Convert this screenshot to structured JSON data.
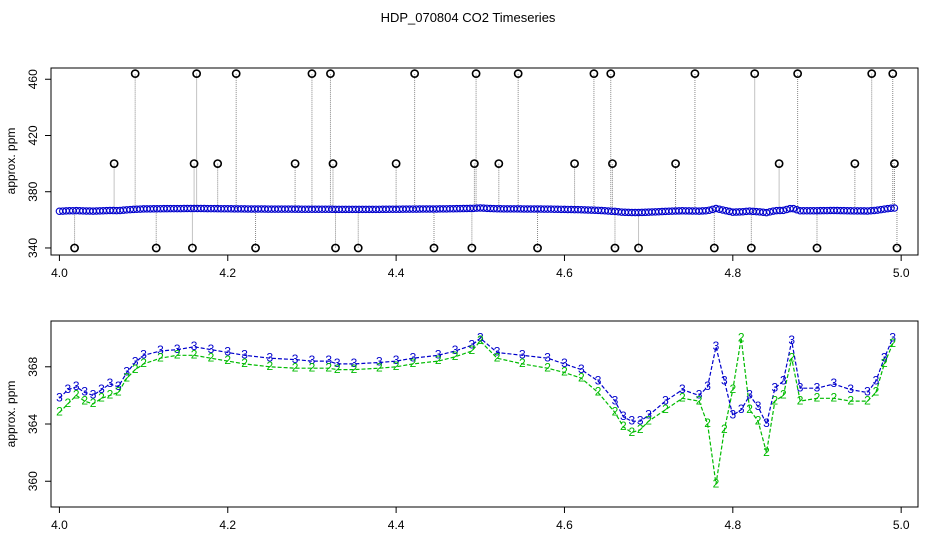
{
  "chart_data": [
    {
      "type": "scatter",
      "title": "HDP_070804  CO2 Timeseries",
      "ylabel": "approx. ppm",
      "xlim": [
        3.99,
        5.02
      ],
      "ylim": [
        335,
        468
      ],
      "xticks": [
        "4.0",
        "4.2",
        "4.4",
        "4.6",
        "4.8",
        "5.0"
      ],
      "yticks": [
        "340",
        "380",
        "420",
        "460"
      ],
      "colors": {
        "raw": "#000000",
        "s2": "#00bb00",
        "s3": "#0000cc",
        "line": "#888888"
      },
      "outliers": [
        {
          "x": 4.018,
          "y": 340
        },
        {
          "x": 4.065,
          "y": 400
        },
        {
          "x": 4.09,
          "y": 464
        },
        {
          "x": 4.115,
          "y": 340
        },
        {
          "x": 4.158,
          "y": 340
        },
        {
          "x": 4.16,
          "y": 400
        },
        {
          "x": 4.163,
          "y": 464
        },
        {
          "x": 4.188,
          "y": 400
        },
        {
          "x": 4.21,
          "y": 464
        },
        {
          "x": 4.233,
          "y": 340
        },
        {
          "x": 4.28,
          "y": 400
        },
        {
          "x": 4.3,
          "y": 464
        },
        {
          "x": 4.322,
          "y": 464
        },
        {
          "x": 4.325,
          "y": 400
        },
        {
          "x": 4.328,
          "y": 340
        },
        {
          "x": 4.355,
          "y": 340
        },
        {
          "x": 4.4,
          "y": 400
        },
        {
          "x": 4.422,
          "y": 464
        },
        {
          "x": 4.445,
          "y": 340
        },
        {
          "x": 4.49,
          "y": 340
        },
        {
          "x": 4.493,
          "y": 400
        },
        {
          "x": 4.495,
          "y": 464
        },
        {
          "x": 4.522,
          "y": 400
        },
        {
          "x": 4.545,
          "y": 464
        },
        {
          "x": 4.568,
          "y": 340
        },
        {
          "x": 4.612,
          "y": 400
        },
        {
          "x": 4.635,
          "y": 464
        },
        {
          "x": 4.655,
          "y": 464
        },
        {
          "x": 4.657,
          "y": 400
        },
        {
          "x": 4.66,
          "y": 340
        },
        {
          "x": 4.688,
          "y": 340
        },
        {
          "x": 4.732,
          "y": 400
        },
        {
          "x": 4.755,
          "y": 464
        },
        {
          "x": 4.778,
          "y": 340
        },
        {
          "x": 4.822,
          "y": 340
        },
        {
          "x": 4.826,
          "y": 464
        },
        {
          "x": 4.855,
          "y": 400
        },
        {
          "x": 4.877,
          "y": 464
        },
        {
          "x": 4.9,
          "y": 340
        },
        {
          "x": 4.945,
          "y": 400
        },
        {
          "x": 4.965,
          "y": 464
        },
        {
          "x": 4.99,
          "y": 464
        },
        {
          "x": 4.992,
          "y": 400
        },
        {
          "x": 4.995,
          "y": 340
        }
      ],
      "series_note": "",
      "series": [
        {
          "name": "",
          "symbol": "o",
          "values_ref": "lower.series.0"
        }
      ]
    },
    {
      "type": "line",
      "title": "",
      "ylabel": "approx. ppm",
      "xlim": [
        3.99,
        5.02
      ],
      "ylim": [
        358.2,
        371.2
      ],
      "xticks": [
        "4.0",
        "4.2",
        "4.4",
        "4.6",
        "4.8",
        "5.0"
      ],
      "yticks": [
        "360",
        "364",
        "368"
      ],
      "x": [
        4.0,
        4.01,
        4.02,
        4.03,
        4.04,
        4.05,
        4.06,
        4.07,
        4.08,
        4.09,
        4.1,
        4.12,
        4.14,
        4.16,
        4.18,
        4.2,
        4.22,
        4.25,
        4.28,
        4.3,
        4.32,
        4.33,
        4.35,
        4.38,
        4.4,
        4.42,
        4.45,
        4.47,
        4.49,
        4.5,
        4.52,
        4.55,
        4.58,
        4.6,
        4.62,
        4.64,
        4.66,
        4.67,
        4.68,
        4.69,
        4.7,
        4.72,
        4.74,
        4.76,
        4.77,
        4.78,
        4.79,
        4.8,
        4.81,
        4.82,
        4.83,
        4.84,
        4.85,
        4.86,
        4.87,
        4.88,
        4.9,
        4.92,
        4.94,
        4.96,
        4.97,
        4.98,
        4.99
      ],
      "series": [
        {
          "name": "3",
          "symbol": "3",
          "color": "#0000cc",
          "values": [
            365.8,
            366.4,
            366.6,
            366.2,
            366.0,
            366.4,
            366.8,
            366.6,
            367.6,
            368.3,
            368.8,
            369.1,
            369.2,
            369.4,
            369.2,
            369.0,
            368.8,
            368.6,
            368.5,
            368.4,
            368.4,
            368.2,
            368.2,
            368.3,
            368.4,
            368.6,
            368.8,
            369.1,
            369.5,
            370.0,
            369.0,
            368.8,
            368.6,
            368.2,
            367.8,
            367.0,
            365.6,
            364.5,
            364.2,
            364.2,
            364.6,
            365.6,
            366.4,
            366.0,
            366.6,
            369.4,
            367.0,
            364.6,
            365.0,
            366.0,
            365.2,
            364.0,
            366.5,
            367.0,
            369.8,
            366.5,
            366.5,
            366.8,
            366.4,
            366.2,
            367.0,
            368.6,
            370.0
          ]
        },
        {
          "name": "2",
          "symbol": "2",
          "color": "#00bb00",
          "values": [
            364.8,
            365.4,
            366.0,
            365.6,
            365.4,
            365.8,
            366.0,
            366.2,
            367.2,
            367.8,
            368.2,
            368.6,
            368.8,
            368.8,
            368.6,
            368.4,
            368.2,
            368.0,
            367.9,
            367.9,
            367.9,
            367.8,
            367.8,
            367.9,
            368.0,
            368.2,
            368.4,
            368.7,
            369.1,
            369.8,
            368.6,
            368.2,
            367.9,
            367.6,
            367.2,
            366.2,
            364.8,
            363.8,
            363.4,
            363.6,
            364.2,
            365.0,
            365.8,
            365.6,
            364.0,
            359.8,
            363.6,
            366.4,
            370.0,
            365.0,
            364.2,
            362.0,
            365.6,
            366.0,
            368.6,
            365.6,
            365.8,
            365.8,
            365.6,
            365.6,
            366.2,
            368.2,
            369.6
          ]
        }
      ]
    }
  ]
}
